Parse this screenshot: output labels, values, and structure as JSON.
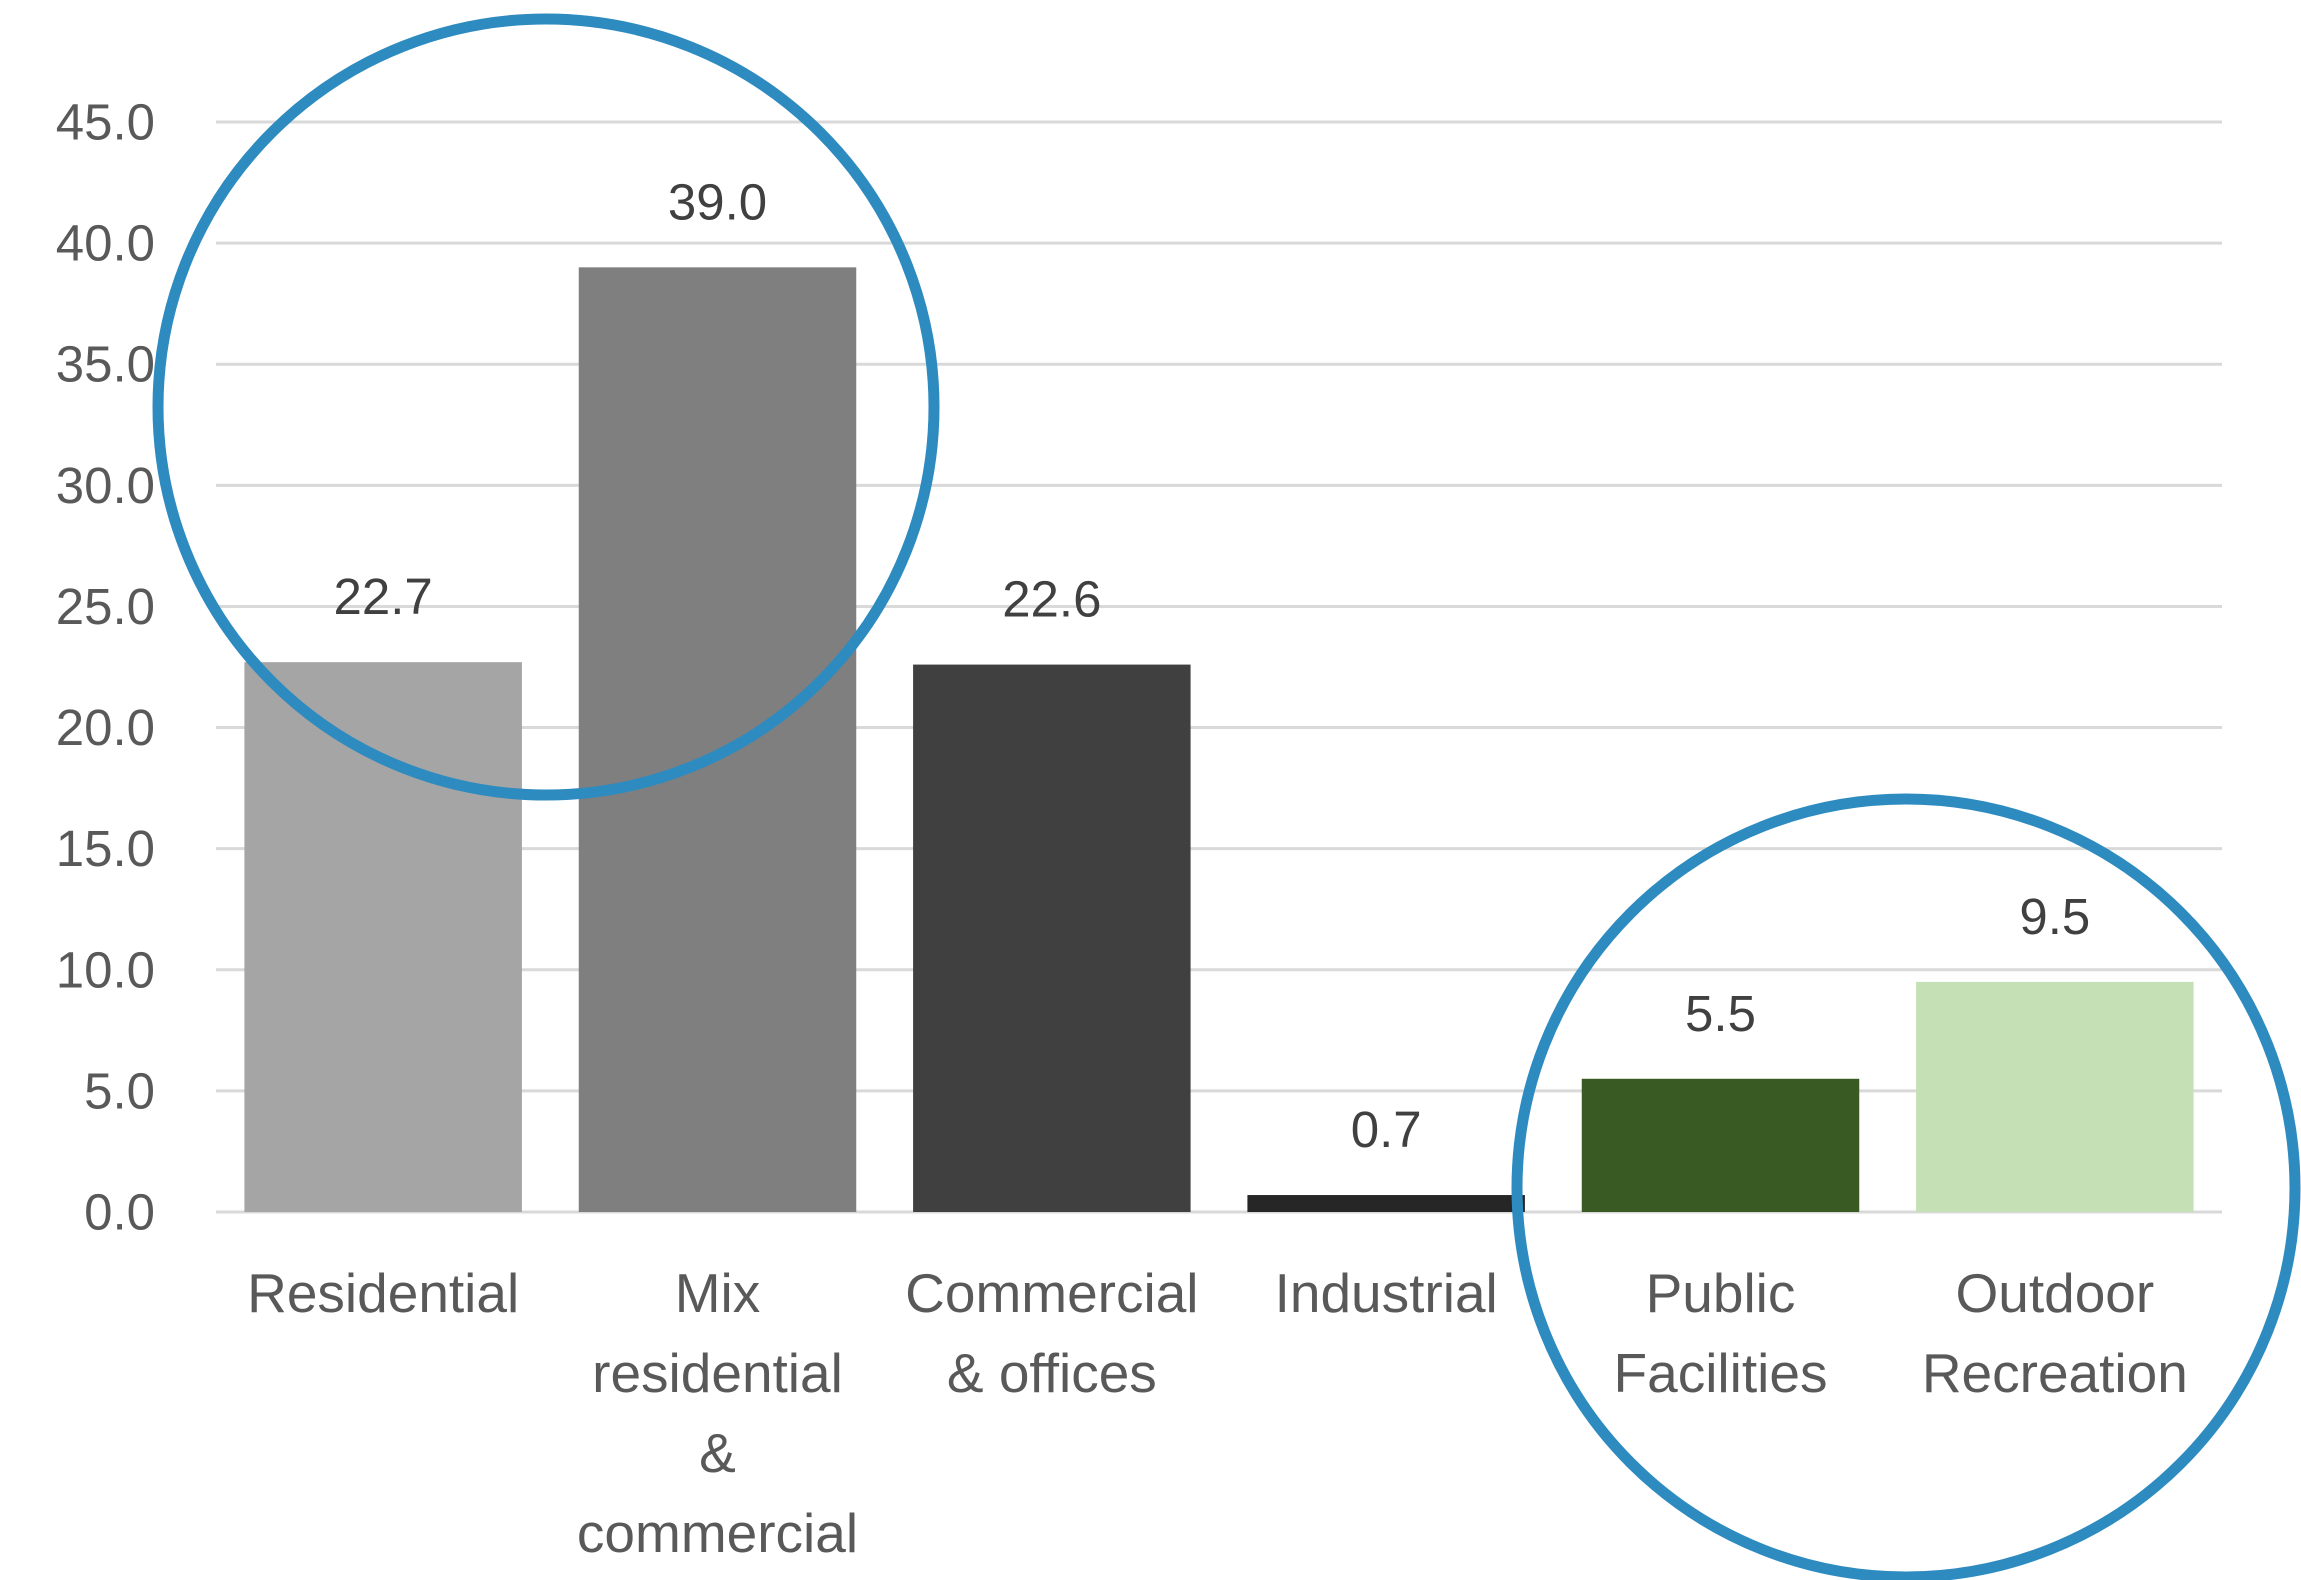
{
  "chart_data": {
    "type": "bar",
    "title": "",
    "xlabel": "",
    "ylabel": "",
    "ylim": [
      0,
      45
    ],
    "y_ticks": [
      "0.0",
      "5.0",
      "10.0",
      "15.0",
      "20.0",
      "25.0",
      "30.0",
      "35.0",
      "40.0",
      "45.0"
    ],
    "y_tick_values": [
      0,
      5,
      10,
      15,
      20,
      25,
      30,
      35,
      40,
      45
    ],
    "grid": true,
    "categories": [
      [
        "Residential"
      ],
      [
        "Mix",
        "residential",
        "&",
        "commercial"
      ],
      [
        "Commercial",
        "& offices"
      ],
      [
        "Industrial"
      ],
      [
        "Public",
        "Facilities"
      ],
      [
        "Outdoor",
        "Recreation"
      ]
    ],
    "values": [
      22.7,
      39.0,
      22.6,
      0.7,
      5.5,
      9.5
    ],
    "value_labels": [
      "22.7",
      "39.0",
      "22.6",
      "0.7",
      "5.5",
      "9.5"
    ],
    "bar_colors": [
      "#a5a5a5",
      "#7f7f7f",
      "#404040",
      "#262626",
      "#3a5a23",
      "#c5e0b4"
    ],
    "highlight_color": "#2e8bc0",
    "highlight_groups": [
      [
        "Residential",
        "Mix residential & commercial"
      ],
      [
        "Public Facilities",
        "Outdoor Recreation"
      ]
    ]
  }
}
